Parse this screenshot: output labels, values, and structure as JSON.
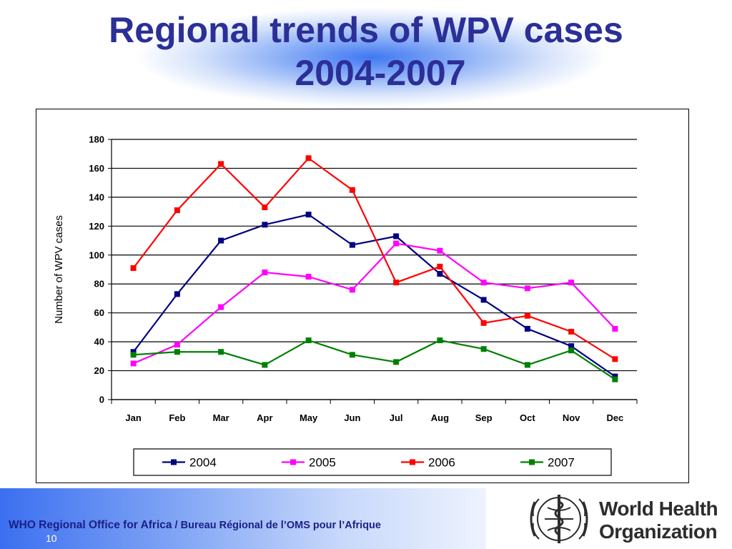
{
  "slide": {
    "title_line1": "Regional trends of WPV cases",
    "title_line2": "2004-2007",
    "footer_office": "WHO Regional Office for Africa",
    "footer_separator": " / ",
    "footer_office_fr": "Bureau Régional de l’OMS pour l’Afrique",
    "page_number": "10",
    "logo_line1": "World Health",
    "logo_line2": "Organization"
  },
  "colors": {
    "title": "#2b2f97",
    "footer_text": "#1b1f86"
  },
  "chart_data": {
    "type": "line",
    "title": "",
    "xlabel": "",
    "ylabel": "Number of WPV cases",
    "ylim": [
      0,
      180
    ],
    "yticks": [
      0,
      20,
      40,
      60,
      80,
      100,
      120,
      140,
      160,
      180
    ],
    "grid": true,
    "legend_position": "bottom",
    "categories": [
      "Jan",
      "Feb",
      "Mar",
      "Apr",
      "May",
      "Jun",
      "Jul",
      "Aug",
      "Sep",
      "Oct",
      "Nov",
      "Dec"
    ],
    "series": [
      {
        "name": "2004",
        "color": "#000080",
        "values": [
          33,
          73,
          110,
          121,
          128,
          107,
          113,
          87,
          69,
          49,
          37,
          16
        ]
      },
      {
        "name": "2005",
        "color": "#ff00ff",
        "values": [
          25,
          38,
          64,
          88,
          85,
          76,
          108,
          103,
          81,
          77,
          81,
          49
        ]
      },
      {
        "name": "2006",
        "color": "#ff0000",
        "values": [
          91,
          131,
          163,
          133,
          167,
          145,
          81,
          92,
          53,
          58,
          47,
          28
        ]
      },
      {
        "name": "2007",
        "color": "#008000",
        "values": [
          31,
          33,
          33,
          24,
          41,
          31,
          26,
          41,
          35,
          24,
          34,
          14
        ]
      }
    ]
  }
}
